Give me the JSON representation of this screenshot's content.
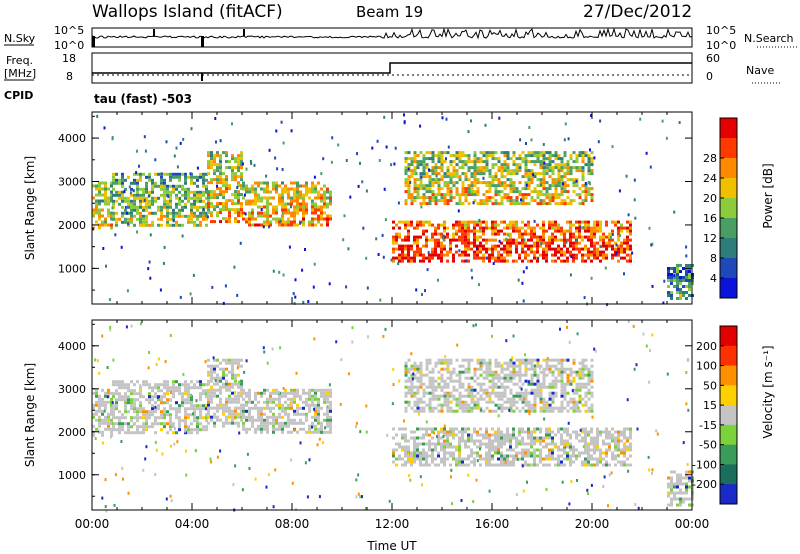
{
  "header": {
    "site": "Wallops Island (fitACF)",
    "beam": "Beam 19",
    "date": "27/Dec/2012"
  },
  "panels": {
    "nsky": {
      "label": "N.Sky",
      "ytick_top": "10^5",
      "ytick_bottom": "10^0"
    },
    "nsearch": {
      "label": "N.Search",
      "ytick_top": "10^5",
      "ytick_bottom": "10^0"
    },
    "freq": {
      "label_line1": "Freq.",
      "label_line2": "[MHz]",
      "ytick_top": "18",
      "ytick_bottom": "8"
    },
    "nave": {
      "label": "Nave",
      "ytick_top": "60",
      "ytick_bottom": "0"
    },
    "cpid": {
      "label": "CPID",
      "value": "tau (fast) -503"
    }
  },
  "chart_data": [
    {
      "type": "heatmap",
      "title": "",
      "xlabel": "",
      "ylabel": "Slant Range [km]",
      "xlim": [
        0,
        24
      ],
      "ylim": [
        180,
        4600
      ],
      "yticks": [
        "1000",
        "2000",
        "3000",
        "4000"
      ],
      "colorbar": {
        "label": "Power [dB]",
        "ticks": [
          "4",
          "8",
          "12",
          "16",
          "20",
          "24",
          "28"
        ],
        "colors": [
          "#0a14d8",
          "#1f49b8",
          "#2f7d7a",
          "#4a9e64",
          "#8ccc3c",
          "#f0c000",
          "#ff8a00",
          "#ff3a00",
          "#e40000"
        ]
      },
      "echo_regions": [
        {
          "t": [
            0.0,
            0.8
          ],
          "range": [
            1900,
            3000
          ],
          "level": 0.55
        },
        {
          "t": [
            0.8,
            4.6
          ],
          "range": [
            2000,
            3200
          ],
          "level": 0.45
        },
        {
          "t": [
            4.6,
            6.0
          ],
          "range": [
            2100,
            3700
          ],
          "level": 0.6
        },
        {
          "t": [
            6.0,
            9.5
          ],
          "range": [
            2000,
            3000
          ],
          "level": 0.65
        },
        {
          "t": [
            12.0,
            21.5
          ],
          "range": [
            1200,
            2100
          ],
          "level": 0.85
        },
        {
          "t": [
            12.5,
            20.0
          ],
          "range": [
            2500,
            3700
          ],
          "level": 0.55
        },
        {
          "t": [
            23.0,
            24.0
          ],
          "range": [
            300,
            1100
          ],
          "level": 0.3
        }
      ]
    },
    {
      "type": "heatmap",
      "title": "",
      "xlabel": "Time UT",
      "ylabel": "Slant Range [km]",
      "xlim": [
        0,
        24
      ],
      "ylim": [
        180,
        4600
      ],
      "xticks": [
        "00:00",
        "04:00",
        "08:00",
        "12:00",
        "16:00",
        "20:00",
        "00:00"
      ],
      "yticks": [
        "1000",
        "2000",
        "3000",
        "4000"
      ],
      "colorbar": {
        "label": "Velocity [m s⁻¹]",
        "ticks": [
          "200",
          "100",
          "50",
          "15",
          "-15",
          "-50",
          "-100",
          "-200"
        ],
        "colors": [
          "#1a2ac8",
          "#1c6e5c",
          "#3a9c5a",
          "#7bd23a",
          "#c4c4c4",
          "#ffd000",
          "#ff9000",
          "#ff3000",
          "#e00000"
        ]
      },
      "echo_regions": [
        {
          "t": [
            0.0,
            0.8
          ],
          "range": [
            1900,
            3000
          ],
          "level": 0.5
        },
        {
          "t": [
            0.8,
            4.6
          ],
          "range": [
            2000,
            3200
          ],
          "level": 0.5
        },
        {
          "t": [
            4.6,
            6.0
          ],
          "range": [
            2100,
            3700
          ],
          "level": 0.5
        },
        {
          "t": [
            6.0,
            9.5
          ],
          "range": [
            2000,
            3000
          ],
          "level": 0.5
        },
        {
          "t": [
            12.0,
            21.5
          ],
          "range": [
            1200,
            2100
          ],
          "level": 0.5
        },
        {
          "t": [
            12.5,
            20.0
          ],
          "range": [
            2500,
            3700
          ],
          "level": 0.5
        },
        {
          "t": [
            23.0,
            24.0
          ],
          "range": [
            300,
            1100
          ],
          "level": 0.4
        }
      ]
    }
  ]
}
